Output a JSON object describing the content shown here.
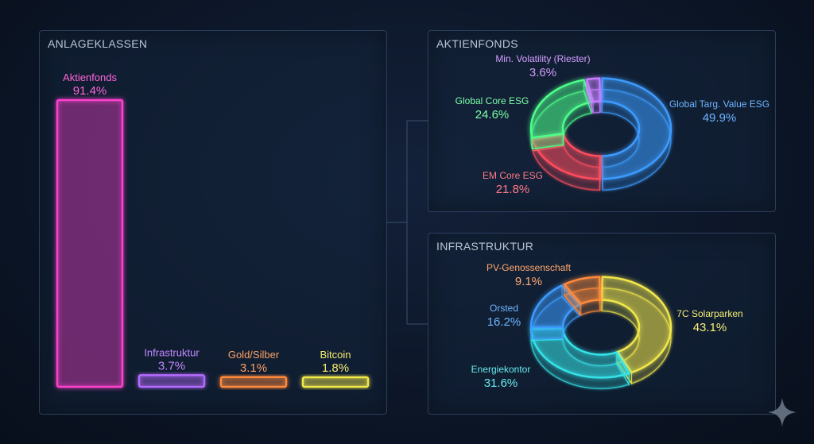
{
  "colors": {
    "magenta": "#ff3fcf",
    "purple": "#b46bff",
    "orange": "#ff8a3d",
    "yellow": "#f2e84a",
    "blue": "#3d9cff",
    "red": "#ff4d5e",
    "green": "#4dff8a",
    "violet": "#c77dff",
    "cyan": "#34e3e8"
  },
  "chart_data": [
    {
      "type": "bar",
      "title": "ANLAGEKLASSEN",
      "categories": [
        "Aktienfonds",
        "Infrastruktur",
        "Gold/Silber",
        "Bitcoin"
      ],
      "values": [
        91.4,
        3.7,
        3.1,
        1.8
      ],
      "value_labels": [
        "91.4%",
        "3.7%",
        "3.1%",
        "1.8%"
      ],
      "colors": [
        "#ff3fcf",
        "#b46bff",
        "#ff8a3d",
        "#f2e84a"
      ],
      "ylim": [
        0,
        100
      ],
      "grid": false
    },
    {
      "type": "pie",
      "title": "AKTIENFONDS",
      "labels": [
        "Global Targ. Value ESG",
        "EM Core ESG",
        "Global Core ESG",
        "Min. Volatility (Riester)"
      ],
      "values": [
        49.9,
        21.8,
        24.6,
        3.6
      ],
      "value_labels": [
        "49.9%",
        "21.8%",
        "24.6%",
        "3.6%"
      ],
      "colors": [
        "#3d9cff",
        "#ff4d5e",
        "#4dff8a",
        "#c77dff"
      ]
    },
    {
      "type": "pie",
      "title": "INFRASTRUKTUR",
      "labels": [
        "7C Solarparken",
        "Energiekontor",
        "Orsted",
        "PV-Genossenschaft"
      ],
      "values": [
        43.1,
        31.6,
        16.2,
        9.1
      ],
      "value_labels": [
        "43.1%",
        "31.6%",
        "16.2%",
        "9.1%"
      ],
      "colors": [
        "#f2e84a",
        "#34e3e8",
        "#3d9cff",
        "#ff8a3d"
      ]
    }
  ]
}
